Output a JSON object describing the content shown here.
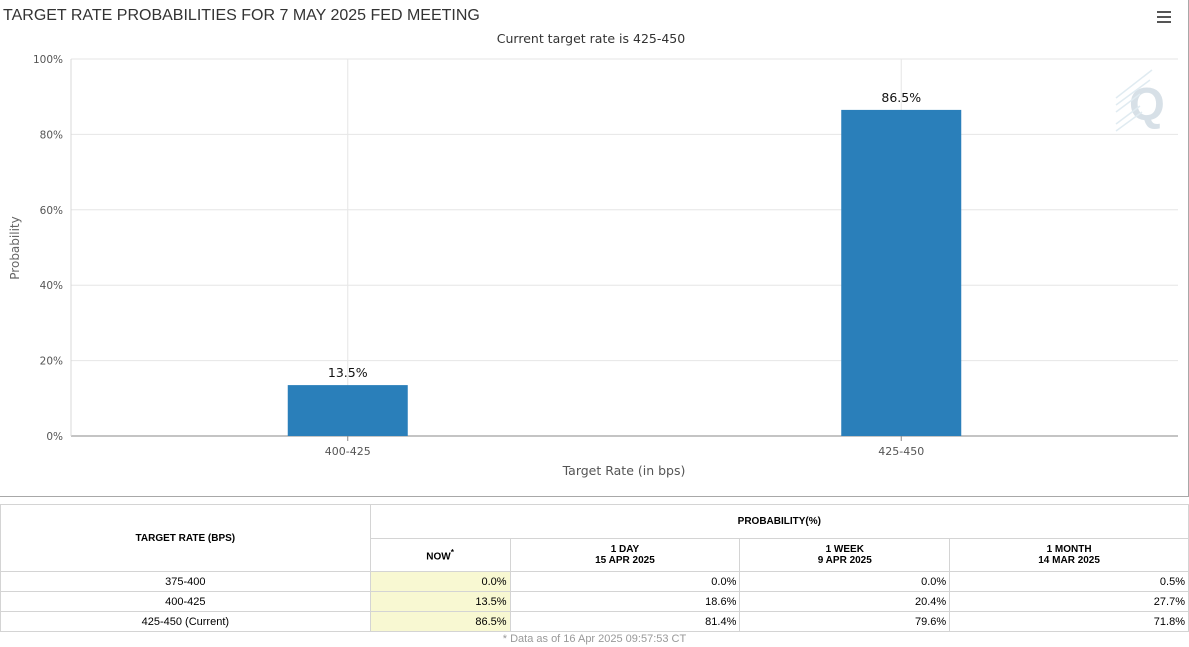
{
  "chart_data": {
    "type": "bar",
    "title": "TARGET RATE PROBABILITIES FOR 7 MAY 2025 FED MEETING",
    "subtitle": "Current target rate is 425-450",
    "categories": [
      "400-425",
      "425-450"
    ],
    "values": [
      13.5,
      86.5
    ],
    "data_labels": [
      "13.5%",
      "86.5%"
    ],
    "xlabel": "Target Rate (in bps)",
    "ylabel": "Probability",
    "ylim": [
      0,
      100
    ],
    "yticks": [
      "0%",
      "20%",
      "40%",
      "60%",
      "80%",
      "100%"
    ],
    "ytick_values": [
      0,
      20,
      40,
      60,
      80,
      100
    ],
    "bar_color": "#2a7fba",
    "grid": true
  },
  "menu_icon": "hamburger-menu-icon",
  "watermark_icon": "quikstrike-q-logo-icon",
  "table": {
    "target_rate_header": "TARGET RATE (BPS)",
    "probability_header": "PROBABILITY(%)",
    "columns": [
      {
        "line1": "NOW",
        "line2": "",
        "marker": "*"
      },
      {
        "line1": "1 DAY",
        "line2": "15 APR 2025",
        "marker": ""
      },
      {
        "line1": "1 WEEK",
        "line2": "9 APR 2025",
        "marker": ""
      },
      {
        "line1": "1 MONTH",
        "line2": "14 MAR 2025",
        "marker": ""
      }
    ],
    "rows": [
      {
        "rate": "375-400",
        "values": [
          "0.0%",
          "0.0%",
          "0.0%",
          "0.5%"
        ]
      },
      {
        "rate": "400-425",
        "values": [
          "13.5%",
          "18.6%",
          "20.4%",
          "27.7%"
        ]
      },
      {
        "rate": "425-450 (Current)",
        "values": [
          "86.5%",
          "81.4%",
          "79.6%",
          "71.8%"
        ]
      }
    ],
    "footnote": "* Data as of 16 Apr 2025 09:57:53 CT"
  }
}
